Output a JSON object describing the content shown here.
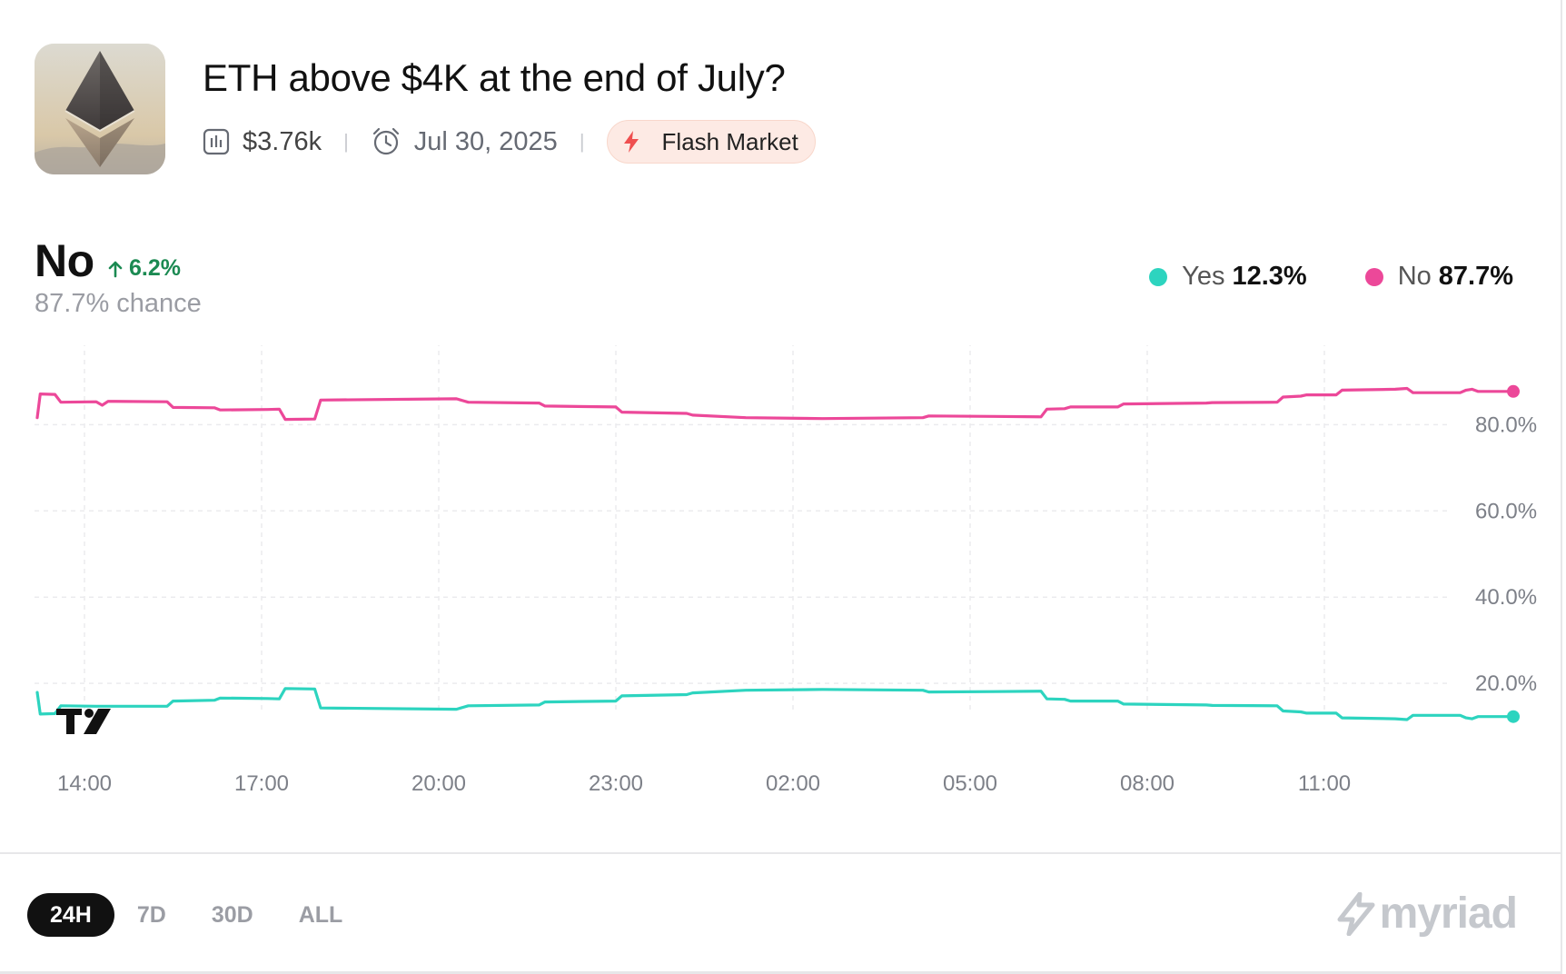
{
  "market": {
    "title": "ETH above $4K at the end of July?",
    "volume": "$3.76k",
    "date": "Jul 30, 2025",
    "badge": "Flash Market",
    "thumbnail_icon": "ethereum-icon"
  },
  "outcome": {
    "name": "No",
    "change": "6.2%",
    "chance": "87.7% chance"
  },
  "legend": [
    {
      "name": "Yes",
      "value": "12.3%",
      "color": "#2dd4bf"
    },
    {
      "name": "No",
      "value": "87.7%",
      "color": "#ec4899"
    }
  ],
  "ranges": [
    {
      "label": "24H",
      "active": true
    },
    {
      "label": "7D",
      "active": false
    },
    {
      "label": "30D",
      "active": false
    },
    {
      "label": "ALL",
      "active": false
    }
  ],
  "brand": "myriad",
  "colors": {
    "yes": "#2dd4bf",
    "no": "#ec4899",
    "up": "#1b8a52"
  },
  "chart_data": {
    "type": "line",
    "x_ticks": [
      "14:00",
      "17:00",
      "20:00",
      "23:00",
      "02:00",
      "05:00",
      "08:00",
      "11:00"
    ],
    "y_ticks": [
      "20.0%",
      "40.0%",
      "60.0%",
      "80.0%"
    ],
    "ylim": [
      3.6,
      98.4
    ],
    "grid": true,
    "legend_position": "top-right",
    "series": [
      {
        "name": "No",
        "color": "#ec4899",
        "points": [
          [
            13.2,
            81.6
          ],
          [
            13.25,
            87.1
          ],
          [
            13.5,
            87.0
          ],
          [
            13.6,
            85.2
          ],
          [
            14.2,
            85.3
          ],
          [
            14.3,
            84.5
          ],
          [
            14.4,
            85.4
          ],
          [
            15.4,
            85.3
          ],
          [
            15.5,
            84.0
          ],
          [
            16.2,
            83.9
          ],
          [
            16.3,
            83.4
          ],
          [
            17.1,
            83.5
          ],
          [
            17.3,
            83.6
          ],
          [
            17.4,
            81.2
          ],
          [
            17.9,
            81.3
          ],
          [
            18.0,
            85.7
          ],
          [
            20.3,
            86.0
          ],
          [
            20.5,
            85.2
          ],
          [
            21.7,
            85.0
          ],
          [
            21.8,
            84.3
          ],
          [
            23.0,
            84.1
          ],
          [
            23.1,
            82.9
          ],
          [
            24.2,
            82.6
          ],
          [
            24.3,
            82.2
          ],
          [
            25.2,
            81.6
          ],
          [
            26.5,
            81.4
          ],
          [
            28.2,
            81.6
          ],
          [
            28.3,
            82.0
          ],
          [
            29.4,
            81.9
          ],
          [
            30.2,
            81.8
          ],
          [
            30.3,
            83.6
          ],
          [
            30.6,
            83.7
          ],
          [
            30.7,
            84.1
          ],
          [
            31.5,
            84.1
          ],
          [
            31.6,
            84.8
          ],
          [
            33.0,
            85.0
          ],
          [
            33.1,
            85.1
          ],
          [
            34.2,
            85.2
          ],
          [
            34.3,
            86.4
          ],
          [
            34.6,
            86.6
          ],
          [
            34.7,
            86.9
          ],
          [
            35.2,
            86.9
          ],
          [
            35.3,
            88.0
          ],
          [
            36.2,
            88.2
          ],
          [
            36.4,
            88.4
          ],
          [
            36.5,
            87.4
          ],
          [
            37.3,
            87.4
          ],
          [
            37.4,
            88.0
          ],
          [
            37.5,
            88.2
          ],
          [
            37.6,
            87.7
          ],
          [
            38.2,
            87.7
          ]
        ]
      },
      {
        "name": "Yes",
        "color": "#2dd4bf",
        "points": [
          [
            13.2,
            17.9
          ],
          [
            13.25,
            12.9
          ],
          [
            13.5,
            13.0
          ],
          [
            13.6,
            14.8
          ],
          [
            14.2,
            14.7
          ],
          [
            15.4,
            14.7
          ],
          [
            15.5,
            15.9
          ],
          [
            16.2,
            16.1
          ],
          [
            16.3,
            16.6
          ],
          [
            17.1,
            16.5
          ],
          [
            17.3,
            16.4
          ],
          [
            17.4,
            18.8
          ],
          [
            17.9,
            18.7
          ],
          [
            18.0,
            14.3
          ],
          [
            20.3,
            14.0
          ],
          [
            20.5,
            14.8
          ],
          [
            21.7,
            15.0
          ],
          [
            21.8,
            15.7
          ],
          [
            23.0,
            15.9
          ],
          [
            23.1,
            17.1
          ],
          [
            24.2,
            17.4
          ],
          [
            24.3,
            17.8
          ],
          [
            25.2,
            18.4
          ],
          [
            26.5,
            18.6
          ],
          [
            28.2,
            18.4
          ],
          [
            28.3,
            18.0
          ],
          [
            29.4,
            18.1
          ],
          [
            30.2,
            18.2
          ],
          [
            30.3,
            16.4
          ],
          [
            30.6,
            16.3
          ],
          [
            30.7,
            15.9
          ],
          [
            31.5,
            15.9
          ],
          [
            31.6,
            15.2
          ],
          [
            33.0,
            15.0
          ],
          [
            33.1,
            14.9
          ],
          [
            34.2,
            14.8
          ],
          [
            34.3,
            13.6
          ],
          [
            34.6,
            13.4
          ],
          [
            34.7,
            13.1
          ],
          [
            35.2,
            13.1
          ],
          [
            35.3,
            12.0
          ],
          [
            36.2,
            11.8
          ],
          [
            36.4,
            11.6
          ],
          [
            36.5,
            12.6
          ],
          [
            37.3,
            12.6
          ],
          [
            37.4,
            12.0
          ],
          [
            37.5,
            11.8
          ],
          [
            37.6,
            12.3
          ],
          [
            38.2,
            12.3
          ]
        ]
      }
    ]
  }
}
